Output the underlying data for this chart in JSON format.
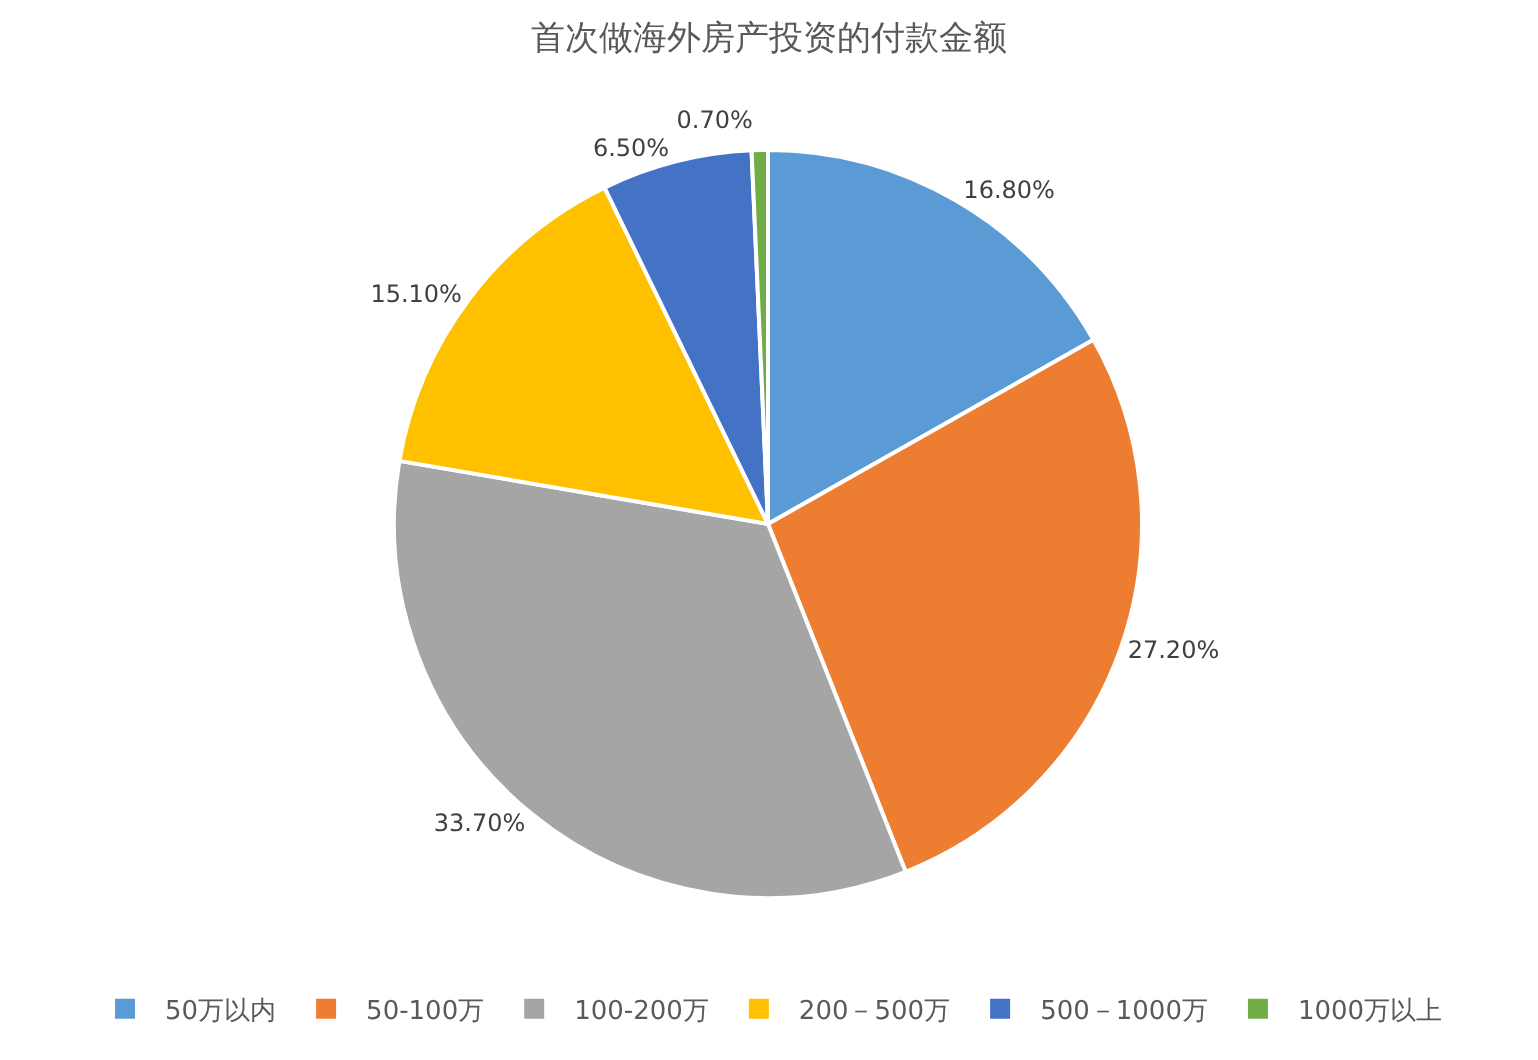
{
  "chart_data": {
    "type": "pie",
    "title": "首次做海外房产投资的付款金额",
    "categories": [
      "50万以内",
      "50-100万",
      "100-200万",
      "200－500万",
      "500－1000万",
      "1000万以上"
    ],
    "values": [
      16.8,
      27.2,
      33.7,
      15.1,
      6.5,
      0.7
    ],
    "colors": [
      "#5b9bd5",
      "#ed7d31",
      "#a5a5a5",
      "#ffc000",
      "#4472c4",
      "#70ad47"
    ],
    "value_labels": [
      "16.80%",
      "27.20%",
      "33.70%",
      "15.10%",
      "6.50%",
      "0.70%"
    ],
    "legend": "bottom"
  }
}
